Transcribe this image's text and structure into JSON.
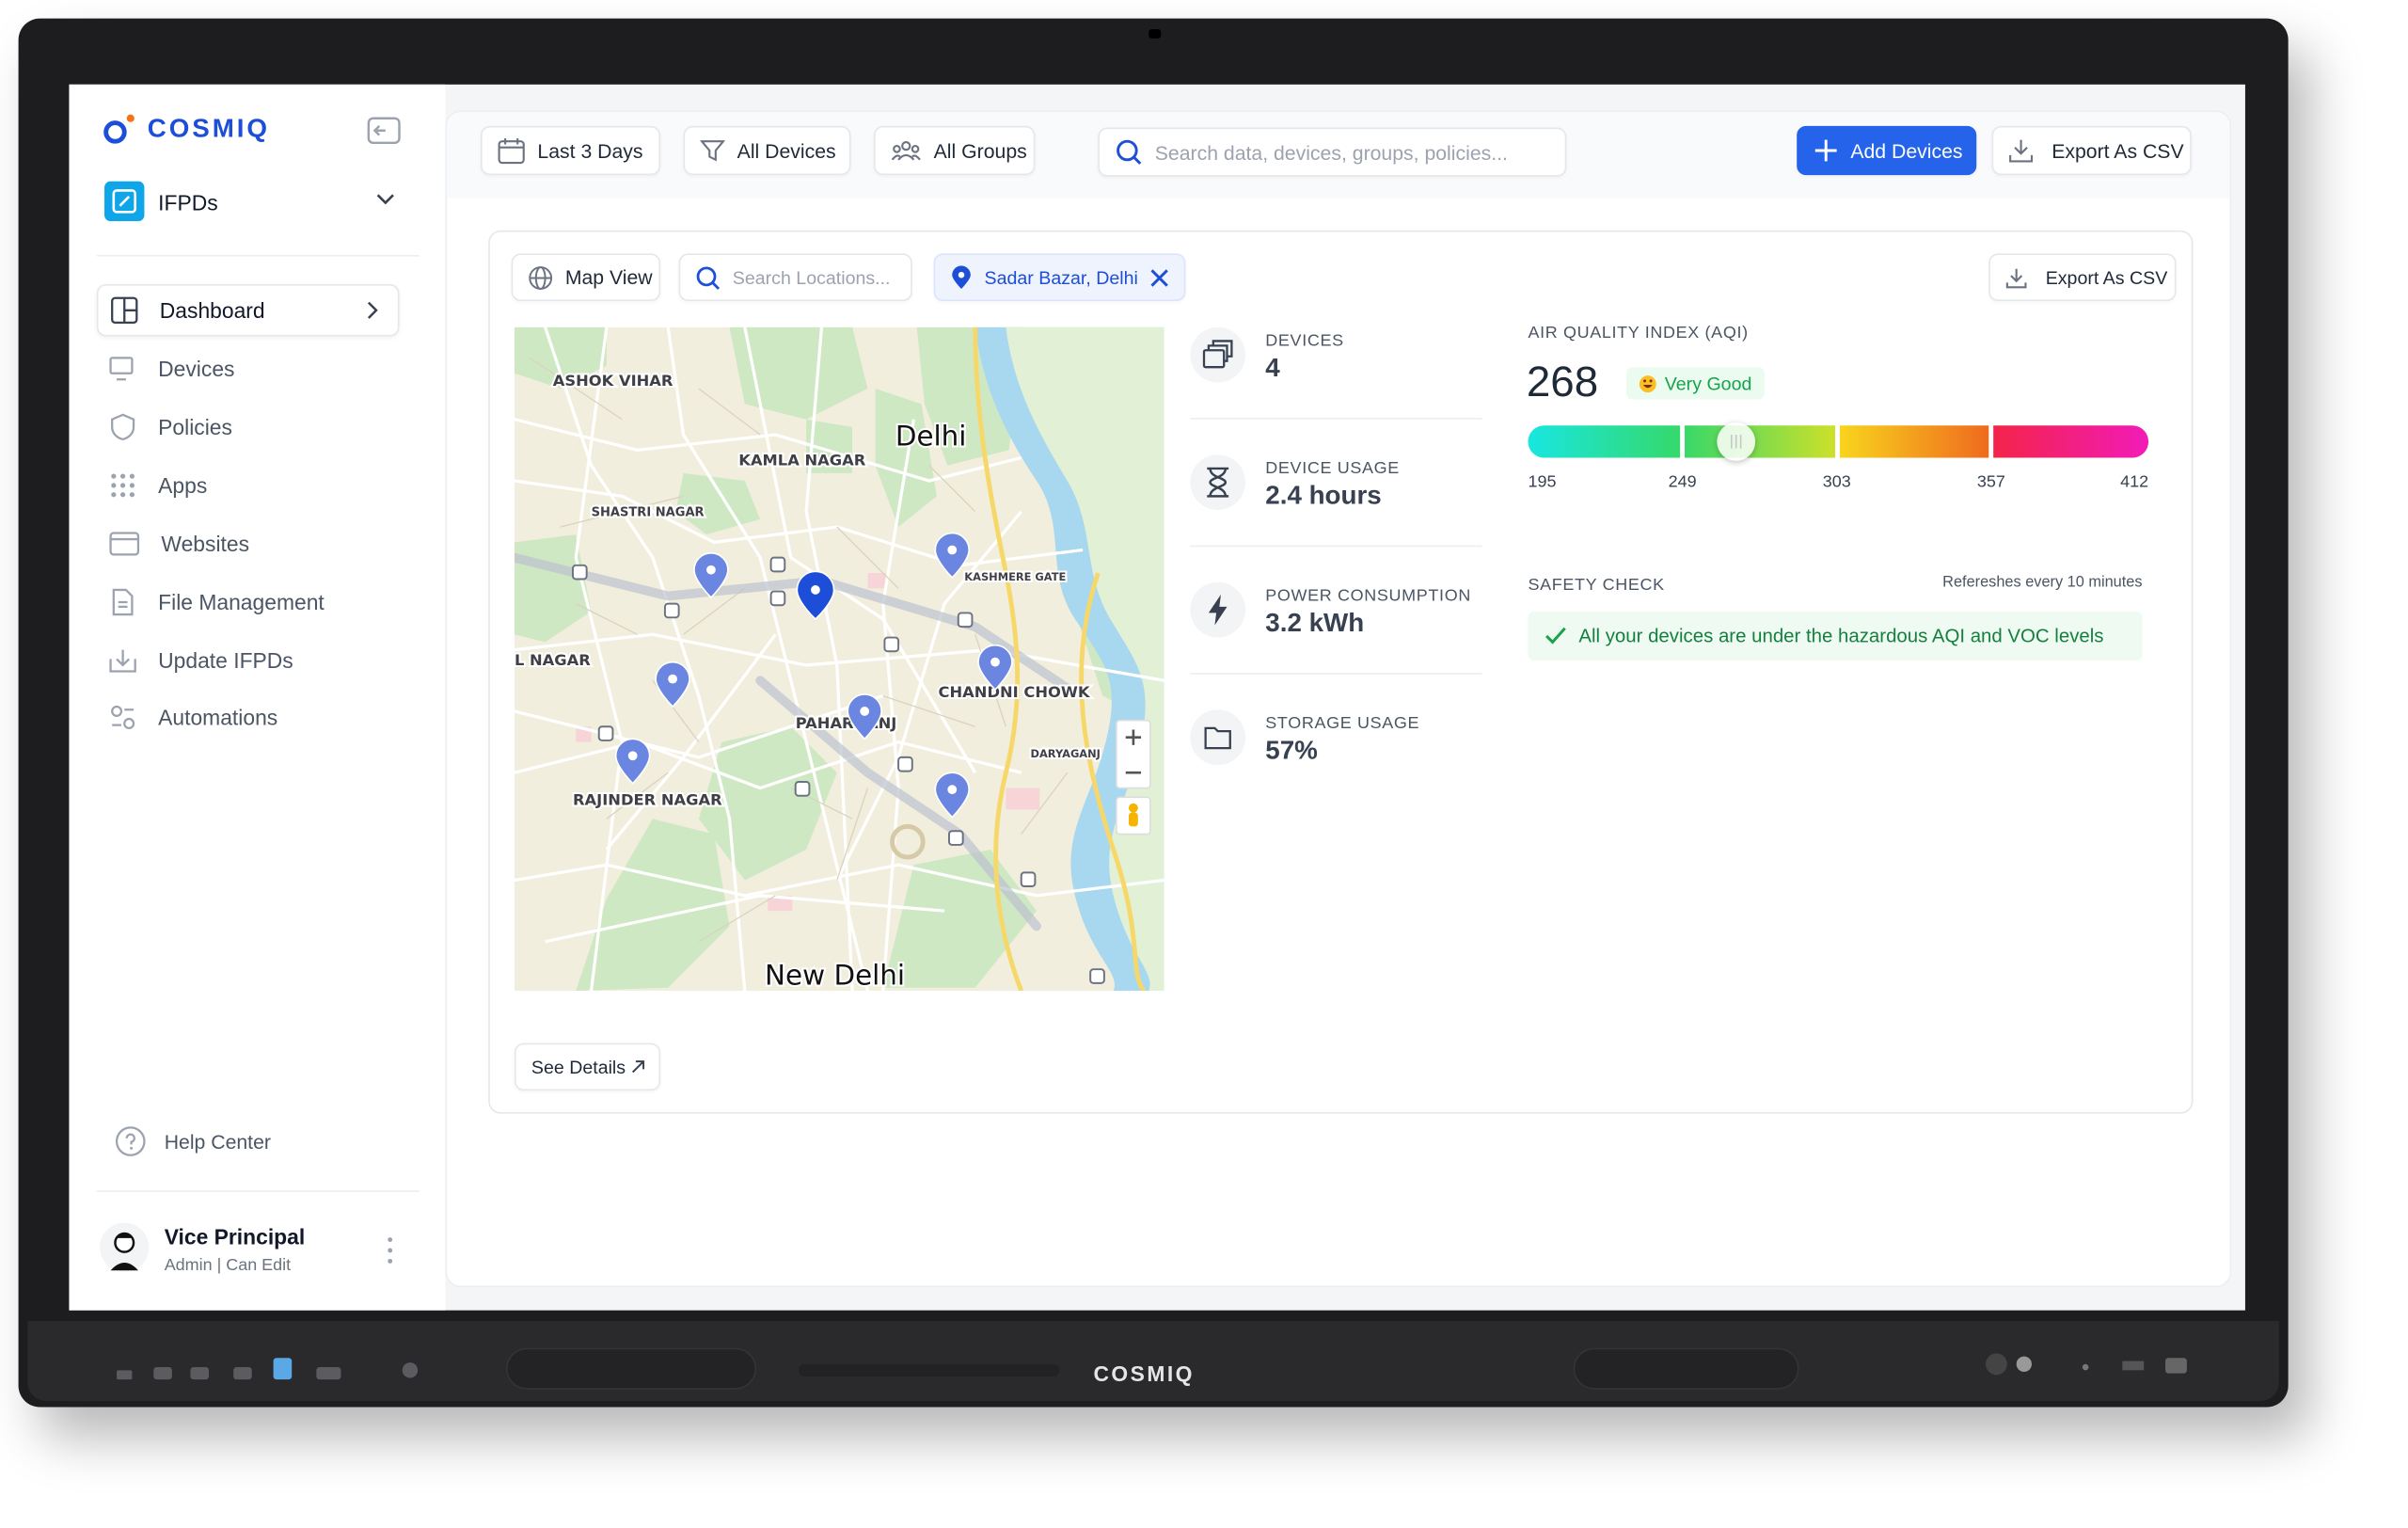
{
  "brand": {
    "name": "COSMIQ"
  },
  "sidebar": {
    "workspace": "IFPDs",
    "nav": [
      "Dashboard",
      "Devices",
      "Policies",
      "Apps",
      "Websites",
      "File Management",
      "Update IFPDs",
      "Automations"
    ],
    "help": "Help Center",
    "user": {
      "name": "Vice Principal",
      "role": "Admin | Can Edit"
    }
  },
  "toolbar": {
    "date_range": "Last 3 Days",
    "devices_filter": "All Devices",
    "groups_filter": "All Groups",
    "search_placeholder": "Search data, devices, groups, policies...",
    "add_button": "Add Devices",
    "export_button": "Export As CSV"
  },
  "panel": {
    "view": "Map View",
    "location_search_placeholder": "Search Locations...",
    "location_chip": "Sadar Bazar, Delhi",
    "export_button": "Export As CSV",
    "see_details": "See Details"
  },
  "map": {
    "labels": [
      "ASHOK VIHAR",
      "KAMLA NAGAR",
      "Delhi",
      "SHASTRI NAGAR",
      "KASHMERE GATE",
      "CHANDNI CHOWK",
      "PAHARGANJ",
      "DARYAGANJ",
      "RAJINDER NAGAR",
      "L NAGAR",
      "New Delhi"
    ]
  },
  "stats": [
    {
      "label": "DEVICES",
      "value": "4"
    },
    {
      "label": "DEVICE USAGE",
      "value": "2.4 hours"
    },
    {
      "label": "POWER CONSUMPTION",
      "value": "3.2 kWh"
    },
    {
      "label": "STORAGE USAGE",
      "value": "57%"
    }
  ],
  "aqi": {
    "title": "AIR QUALITY INDEX (AQI)",
    "value": 268,
    "status": "Very Good",
    "scale": [
      195,
      249,
      303,
      357,
      412
    ]
  },
  "safety": {
    "title": "SAFETY CHECK",
    "refresh_note": "Refereshes every 10 minutes",
    "message": "All your devices are under the hazardous AQI and VOC levels"
  },
  "device": {
    "bezel_logo": "COSMIQ"
  }
}
